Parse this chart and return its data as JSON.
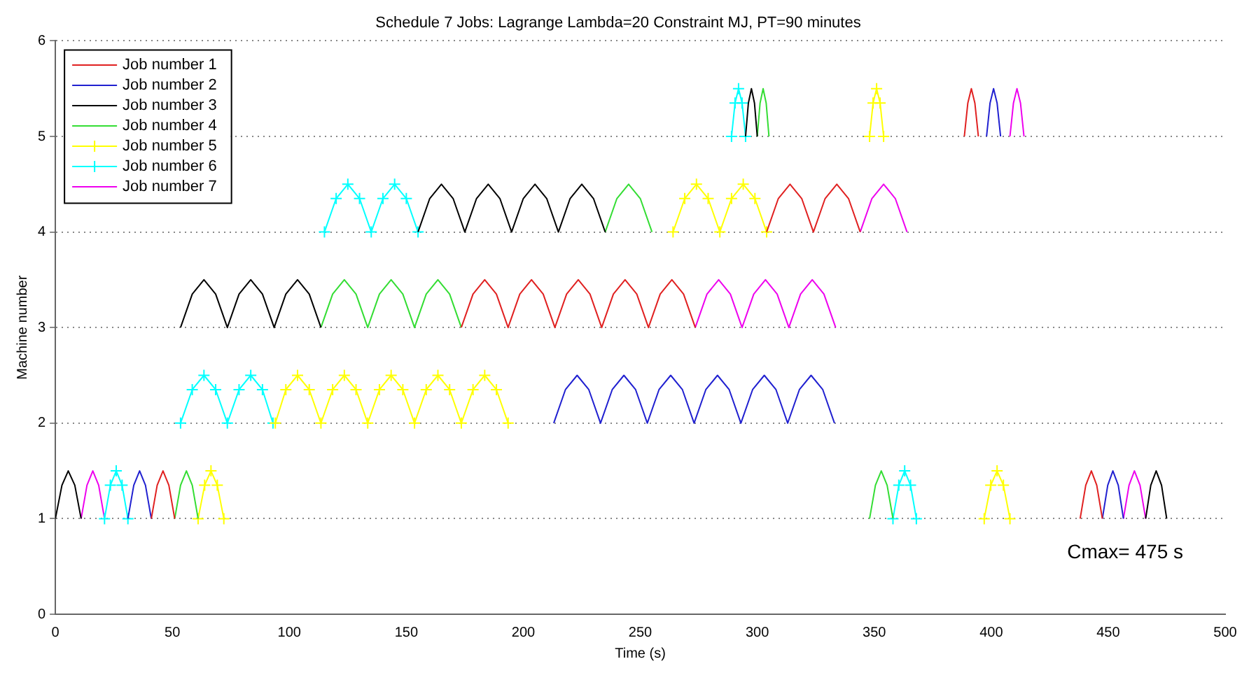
{
  "chart_data": {
    "type": "line",
    "title": "Schedule 7 Jobs: Lagrange Lambda=20 Constraint MJ, PT=90 minutes",
    "xlabel": "Time (s)",
    "ylabel": "Machine number",
    "xlim": [
      0,
      500
    ],
    "xticks": [
      0,
      50,
      100,
      150,
      200,
      250,
      300,
      350,
      400,
      450,
      500
    ],
    "ylim": [
      0,
      6
    ],
    "yticks": [
      0,
      1,
      2,
      3,
      4,
      5,
      6
    ],
    "grid": "y",
    "legend": "top left",
    "line_style": "solid",
    "annotations": [
      "Cmax= 475 s"
    ],
    "series": [
      {
        "name": "Job number 1",
        "color": "#e02020",
        "marker": "none",
        "x": [
          41,
          43.5,
          46,
          48.5,
          51,
          null,
          173.5,
          178.5,
          183.5,
          188.5,
          193.5,
          198.5,
          203.5,
          208.5,
          213.5,
          218.5,
          223.5,
          228.5,
          233.5,
          238.5,
          243.5,
          248.5,
          253.5,
          258.5,
          263.5,
          268.5,
          273.5,
          null,
          304,
          309,
          314,
          319,
          324,
          329,
          334,
          339,
          344,
          null,
          388.5,
          390,
          391.5,
          393,
          394.5,
          null,
          438,
          440.4,
          442.8,
          445.1,
          447.5
        ],
        "values": [
          1,
          1.35,
          1.5,
          1.35,
          1,
          null,
          3,
          3.35,
          3.5,
          3.35,
          3,
          3.35,
          3.5,
          3.35,
          3,
          3.35,
          3.5,
          3.35,
          3,
          3.35,
          3.5,
          3.35,
          3,
          3.35,
          3.5,
          3.35,
          3,
          null,
          4,
          4.35,
          4.5,
          4.35,
          4,
          4.35,
          4.5,
          4.35,
          4,
          null,
          5,
          5.35,
          5.5,
          5.35,
          5,
          null,
          1,
          1.35,
          1.5,
          1.35,
          1
        ]
      },
      {
        "name": "Job number 2",
        "color": "#2020d0",
        "marker": "none",
        "x": [
          31,
          33.5,
          36,
          38.5,
          41,
          null,
          213,
          218,
          223,
          228,
          233,
          238,
          243,
          248,
          253,
          258,
          263,
          268,
          273,
          278,
          283,
          288,
          293,
          298,
          303,
          308,
          313,
          318,
          323,
          328,
          333,
          null,
          398,
          399.5,
          401,
          402.5,
          404,
          null,
          447.5,
          449.8,
          452,
          454.3,
          456.5
        ],
        "values": [
          1,
          1.35,
          1.5,
          1.35,
          1,
          null,
          2,
          2.35,
          2.5,
          2.35,
          2,
          2.35,
          2.5,
          2.35,
          2,
          2.35,
          2.5,
          2.35,
          2,
          2.35,
          2.5,
          2.35,
          2,
          2.35,
          2.5,
          2.35,
          2,
          2.35,
          2.5,
          2.35,
          2,
          null,
          5,
          5.35,
          5.5,
          5.35,
          5,
          null,
          1,
          1.35,
          1.5,
          1.35,
          1
        ]
      },
      {
        "name": "Job number 3",
        "color": "#000000",
        "marker": "none",
        "x": [
          0,
          2.8,
          5.5,
          8.3,
          11,
          null,
          53.5,
          58.5,
          63.5,
          68.5,
          73.5,
          78.5,
          83.5,
          88.5,
          93.5,
          98.5,
          103.5,
          108.5,
          113.5,
          null,
          155,
          160,
          165,
          170,
          175,
          180,
          185,
          190,
          195,
          200,
          205,
          210,
          215,
          220,
          225,
          230,
          235,
          null,
          295,
          296.2,
          297.5,
          298.8,
          300,
          null,
          466,
          468.2,
          470.5,
          472.8,
          475
        ],
        "values": [
          1,
          1.35,
          1.5,
          1.35,
          1,
          null,
          3,
          3.35,
          3.5,
          3.35,
          3,
          3.35,
          3.5,
          3.35,
          3,
          3.35,
          3.5,
          3.35,
          3,
          null,
          4,
          4.35,
          4.5,
          4.35,
          4,
          4.35,
          4.5,
          4.35,
          4,
          4.35,
          4.5,
          4.35,
          4,
          4.35,
          4.5,
          4.35,
          4,
          null,
          5,
          5.35,
          5.5,
          5.35,
          5,
          null,
          1,
          1.35,
          1.5,
          1.35,
          1
        ]
      },
      {
        "name": "Job number 4",
        "color": "#33dd33",
        "marker": "none",
        "x": [
          51,
          53.5,
          56,
          58.5,
          61,
          null,
          113.5,
          118.5,
          123.5,
          128.5,
          133.5,
          138.5,
          143.5,
          148.5,
          153.5,
          158.5,
          163.5,
          168.5,
          173.5,
          null,
          235,
          240,
          245,
          250,
          255,
          null,
          300,
          301.2,
          302.5,
          303.8,
          305,
          null,
          348,
          350.5,
          353,
          355.5,
          358
        ],
        "values": [
          1,
          1.35,
          1.5,
          1.35,
          1,
          null,
          3,
          3.35,
          3.5,
          3.35,
          3,
          3.35,
          3.5,
          3.35,
          3,
          3.35,
          3.5,
          3.35,
          3,
          null,
          4,
          4.35,
          4.5,
          4.35,
          4,
          null,
          5,
          5.35,
          5.5,
          5.35,
          5,
          null,
          1,
          1.35,
          1.5,
          1.35,
          1
        ]
      },
      {
        "name": "Job number 5",
        "color": "#ffff00",
        "marker": "cross",
        "x": [
          61,
          63.8,
          66.5,
          69.2,
          72,
          null,
          94,
          98.5,
          103.5,
          108.5,
          113.5,
          118.5,
          123.5,
          128.5,
          133.5,
          138.5,
          143.5,
          148.5,
          153.5,
          158.5,
          163.5,
          168.5,
          173.5,
          178.5,
          183.5,
          188.5,
          193.5,
          null,
          264,
          269,
          274,
          279,
          284,
          289,
          294,
          299,
          304,
          null,
          348,
          349.5,
          351,
          352.5,
          354,
          null,
          397,
          399.8,
          402.5,
          405.2,
          408
        ],
        "values": [
          1,
          1.35,
          1.5,
          1.35,
          1,
          null,
          2,
          2.35,
          2.5,
          2.35,
          2,
          2.35,
          2.5,
          2.35,
          2,
          2.35,
          2.5,
          2.35,
          2,
          2.35,
          2.5,
          2.35,
          2,
          2.35,
          2.5,
          2.35,
          2,
          null,
          4,
          4.35,
          4.5,
          4.35,
          4,
          4.35,
          4.5,
          4.35,
          4,
          null,
          5,
          5.35,
          5.5,
          5.35,
          5,
          null,
          1,
          1.35,
          1.5,
          1.35,
          1
        ]
      },
      {
        "name": "Job number 6",
        "color": "#00ffff",
        "marker": "cross",
        "x": [
          21,
          23.5,
          26,
          28.5,
          31,
          null,
          53.5,
          58.5,
          63.5,
          68.5,
          73.5,
          78.5,
          83.5,
          88.5,
          93,
          null,
          115,
          120,
          125,
          130,
          135,
          140,
          145,
          150,
          155,
          null,
          289,
          290.5,
          292,
          293.5,
          295,
          null,
          358,
          360.5,
          363,
          365.5,
          368
        ],
        "values": [
          1,
          1.35,
          1.5,
          1.35,
          1,
          null,
          2,
          2.35,
          2.5,
          2.35,
          2,
          2.35,
          2.5,
          2.35,
          2,
          null,
          4,
          4.35,
          4.5,
          4.35,
          4,
          4.35,
          4.5,
          4.35,
          4,
          null,
          5,
          5.35,
          5.5,
          5.35,
          5,
          null,
          1,
          1.35,
          1.5,
          1.35,
          1
        ]
      },
      {
        "name": "Job number 7",
        "color": "#ee00ee",
        "marker": "none",
        "x": [
          11,
          13.5,
          16,
          18.5,
          21,
          null,
          273.5,
          278.5,
          283.5,
          288.5,
          293.5,
          298.5,
          303.5,
          308.5,
          313.5,
          318.5,
          323.5,
          328.5,
          333.5,
          null,
          344,
          349,
          354,
          359,
          364,
          null,
          408,
          409.5,
          411,
          412.5,
          414,
          null,
          456.5,
          458.9,
          461.2,
          463.6,
          466
        ],
        "values": [
          1,
          1.35,
          1.5,
          1.35,
          1,
          null,
          3,
          3.35,
          3.5,
          3.35,
          3,
          3.35,
          3.5,
          3.35,
          3,
          3.35,
          3.5,
          3.35,
          3,
          null,
          4,
          4.35,
          4.5,
          4.35,
          4,
          null,
          5,
          5.35,
          5.5,
          5.35,
          5,
          null,
          1,
          1.35,
          1.5,
          1.35,
          1
        ]
      }
    ]
  }
}
